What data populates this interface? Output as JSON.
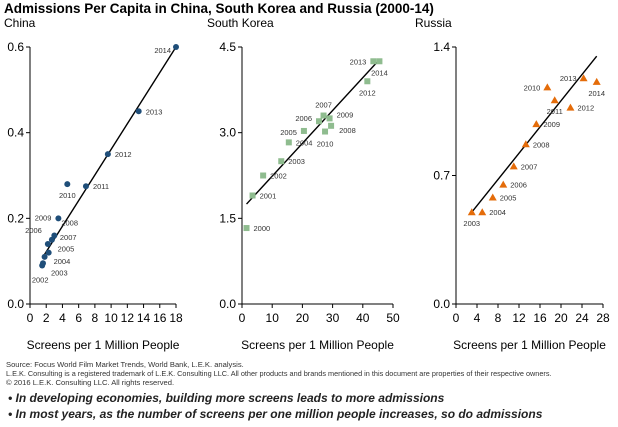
{
  "title": "Admissions Per Capita in China, South Korea and Russia (2000-14)",
  "footer": {
    "source": "Source: Focus World Film Market Trends, World Bank, L.E.K. analysis.",
    "trademark": "L.E.K. Consulting is a registered trademark of L.E.K. Consulting LLC.  All other products and brands mentioned in this document are properties of their respective owners.",
    "copyright": "© 2016 L.E.K. Consulting LLC.  All rights reserved.",
    "bullets": [
      "• In developing economies, building more screens leads to more admissions",
      "• In most years, as the number of screens per one million people increases, so do admissions"
    ]
  },
  "chart_data": [
    {
      "type": "scatter",
      "title": "China",
      "xlabel": "Screens per 1 Million People",
      "ylabel": "",
      "xlim": [
        0,
        18
      ],
      "ylim": [
        0,
        0.6
      ],
      "xticks": [
        "0",
        "2",
        "4",
        "6",
        "8",
        "10",
        "12",
        "14",
        "16",
        "18"
      ],
      "yticks": [
        "0.0",
        "0.2",
        "0.4",
        "0.6"
      ],
      "marker": "circle",
      "color": "#1f4e79",
      "trendline": [
        [
          1.6,
          0.11
        ],
        [
          18,
          0.6
        ]
      ],
      "points": [
        {
          "label": "2002",
          "x": 1.5,
          "y": 0.09,
          "place": "below"
        },
        {
          "label": "2003",
          "x": 1.6,
          "y": 0.095,
          "place": "belowright"
        },
        {
          "label": "2004",
          "x": 1.8,
          "y": 0.11,
          "place": "right"
        },
        {
          "label": "2005",
          "x": 2.3,
          "y": 0.12,
          "place": "right"
        },
        {
          "label": "2006",
          "x": 2.2,
          "y": 0.14,
          "place": "upleft"
        },
        {
          "label": "2007",
          "x": 2.7,
          "y": 0.15,
          "place": "right"
        },
        {
          "label": "2008",
          "x": 3.0,
          "y": 0.16,
          "place": "upright"
        },
        {
          "label": "2009",
          "x": 3.5,
          "y": 0.2,
          "place": "left"
        },
        {
          "label": "2010",
          "x": 4.6,
          "y": 0.28,
          "place": "below"
        },
        {
          "label": "2011",
          "x": 6.9,
          "y": 0.275,
          "place": "right"
        },
        {
          "label": "2012",
          "x": 9.6,
          "y": 0.35,
          "place": "right"
        },
        {
          "label": "2013",
          "x": 13.4,
          "y": 0.45,
          "place": "right"
        },
        {
          "label": "2014",
          "x": 18,
          "y": 0.6,
          "place": "leftdown"
        }
      ]
    },
    {
      "type": "scatter",
      "title": "South Korea",
      "xlabel": "Screens per 1 Million People",
      "ylabel": "",
      "xlim": [
        0,
        50
      ],
      "ylim": [
        0,
        4.5
      ],
      "xticks": [
        "0",
        "10",
        "20",
        "30",
        "40",
        "50"
      ],
      "yticks": [
        "0.0",
        "1.5",
        "3.0",
        "4.5"
      ],
      "marker": "square",
      "color": "#8fbc8f",
      "trendline": [
        [
          1.5,
          1.75
        ],
        [
          45,
          4.25
        ]
      ],
      "points": [
        {
          "label": "2000",
          "x": 1.5,
          "y": 1.33,
          "place": "right"
        },
        {
          "label": "2001",
          "x": 3.5,
          "y": 1.9,
          "place": "right"
        },
        {
          "label": "2002",
          "x": 7,
          "y": 2.25,
          "place": "right"
        },
        {
          "label": "2003",
          "x": 13,
          "y": 2.5,
          "place": "right"
        },
        {
          "label": "2004",
          "x": 15.5,
          "y": 2.83,
          "place": "right"
        },
        {
          "label": "2005",
          "x": 20.5,
          "y": 3.03,
          "place": "left"
        },
        {
          "label": "2006",
          "x": 25.5,
          "y": 3.2,
          "place": "left"
        },
        {
          "label": "2007",
          "x": 27,
          "y": 3.3,
          "place": "above"
        },
        {
          "label": "2008",
          "x": 29.5,
          "y": 3.12,
          "place": "right"
        },
        {
          "label": "2009",
          "x": 29,
          "y": 3.25,
          "place": "right"
        },
        {
          "label": "2010",
          "x": 27.5,
          "y": 3.02,
          "place": "below"
        },
        {
          "label": "2012",
          "x": 41.5,
          "y": 3.9,
          "place": "below"
        },
        {
          "label": "2013",
          "x": 43.5,
          "y": 4.25,
          "place": "left"
        },
        {
          "label": "2014",
          "x": 45.5,
          "y": 4.25,
          "place": "below"
        }
      ]
    },
    {
      "type": "scatter",
      "title": "Russia",
      "xlabel": "Screens per 1 Million People",
      "ylabel": "",
      "xlim": [
        0,
        28
      ],
      "ylim": [
        0,
        1.4
      ],
      "xticks": [
        "0",
        "4",
        "8",
        "12",
        "16",
        "20",
        "24",
        "28"
      ],
      "yticks": [
        "0.0",
        "0.7",
        "1.4"
      ],
      "marker": "triangle",
      "color": "#e46c0a",
      "trendline": [
        [
          3,
          0.5
        ],
        [
          26.8,
          1.35
        ]
      ],
      "points": [
        {
          "label": "2003",
          "x": 3,
          "y": 0.5,
          "place": "below"
        },
        {
          "label": "2004",
          "x": 5,
          "y": 0.5,
          "place": "right"
        },
        {
          "label": "2005",
          "x": 7,
          "y": 0.58,
          "place": "right"
        },
        {
          "label": "2006",
          "x": 9,
          "y": 0.65,
          "place": "right"
        },
        {
          "label": "2007",
          "x": 11,
          "y": 0.75,
          "place": "right"
        },
        {
          "label": "2008",
          "x": 13.3,
          "y": 0.87,
          "place": "right"
        },
        {
          "label": "2009",
          "x": 15.3,
          "y": 0.98,
          "place": "right"
        },
        {
          "label": "2010",
          "x": 17.4,
          "y": 1.18,
          "place": "left"
        },
        {
          "label": "2011",
          "x": 18.8,
          "y": 1.11,
          "place": "below"
        },
        {
          "label": "2012",
          "x": 21.8,
          "y": 1.07,
          "place": "right"
        },
        {
          "label": "2013",
          "x": 24.3,
          "y": 1.23,
          "place": "left"
        },
        {
          "label": "2014",
          "x": 26.8,
          "y": 1.21,
          "place": "below"
        }
      ]
    }
  ]
}
